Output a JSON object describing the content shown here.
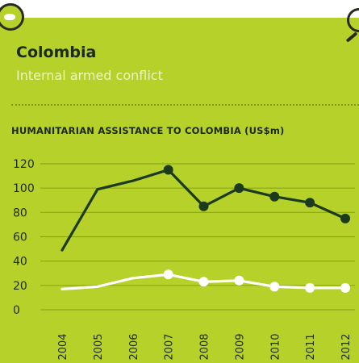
{
  "header": {
    "country": "Colombia",
    "subtitle": "Internal armed conflict"
  },
  "chart_data": {
    "type": "line",
    "title": "HUMANITARIAN ASSISTANCE TO COLOMBIA  (US$m)",
    "x": [
      "2004",
      "2005",
      "2006",
      "2007",
      "2008",
      "2009",
      "2010",
      "2011",
      "2012"
    ],
    "ylim": [
      0,
      120
    ],
    "yticks": [
      0,
      20,
      40,
      60,
      80,
      100,
      120
    ],
    "grid": true,
    "series": [
      {
        "color": "#1c3a1c",
        "values": [
          49,
          99,
          106,
          115,
          85,
          100,
          93,
          88,
          75
        ],
        "markers": [
          false,
          false,
          false,
          true,
          true,
          true,
          true,
          true,
          true
        ]
      },
      {
        "color": "#ffffff",
        "values": [
          17,
          19,
          26,
          29,
          23,
          24,
          19,
          18,
          18
        ],
        "markers": [
          false,
          false,
          false,
          true,
          true,
          true,
          true,
          true,
          true
        ]
      }
    ]
  }
}
